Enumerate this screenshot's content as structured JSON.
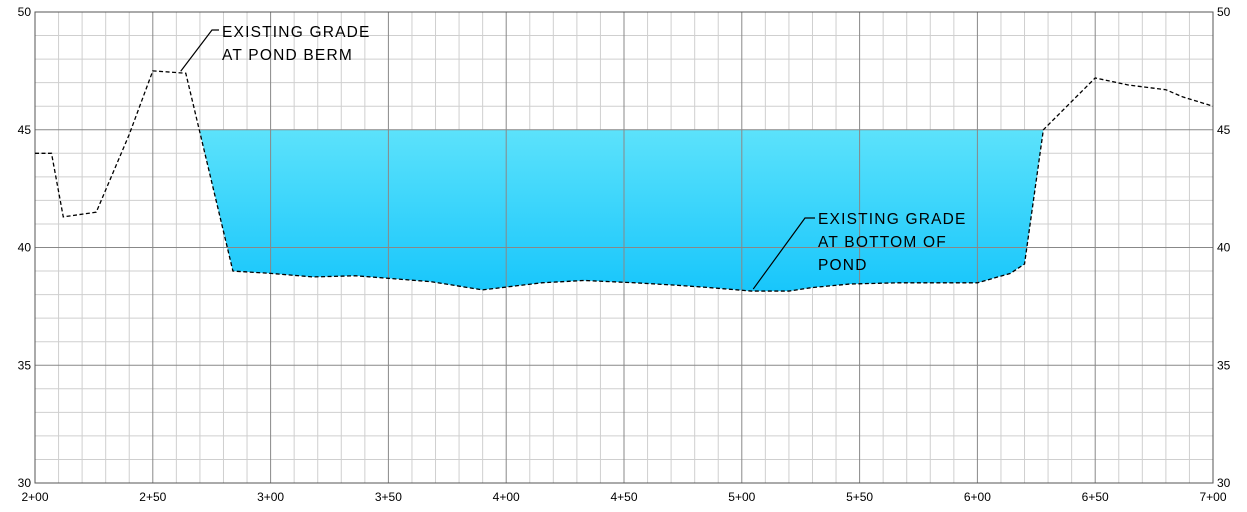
{
  "chart_data": {
    "type": "area",
    "title": "",
    "xlabel": "",
    "ylabel": "",
    "xlim": [
      200,
      700
    ],
    "ylim": [
      30,
      50
    ],
    "x_major_step": 50,
    "x_minor_step": 10,
    "y_major_step": 5,
    "y_minor_step": 1,
    "x_tick_labels": [
      "2+00",
      "2+50",
      "3+00",
      "3+50",
      "4+00",
      "4+50",
      "5+00",
      "5+50",
      "6+00",
      "6+50",
      "7+00"
    ],
    "y_tick_labels": [
      "30",
      "35",
      "40",
      "45",
      "50"
    ],
    "grid": true,
    "colors": {
      "water_top": "#5ce2fb",
      "water_bottom": "#18c6fb",
      "grid_major": "#888888",
      "grid_minor": "#cfcfcf",
      "ground_line": "#000000"
    },
    "water_surface_elevation": 45,
    "series": [
      {
        "x": [
          200,
          207,
          212,
          226,
          240,
          250,
          264,
          284,
          300,
          318,
          336,
          368,
          390,
          415,
          433,
          455,
          472,
          486,
          504,
          520,
          530,
          546,
          566,
          600,
          614,
          620,
          628,
          650,
          664,
          680,
          687,
          700
        ],
        "y": [
          44.0,
          44.0,
          41.3,
          41.5,
          44.8,
          47.5,
          47.4,
          39.0,
          38.9,
          38.75,
          38.8,
          38.55,
          38.2,
          38.5,
          38.6,
          38.5,
          38.4,
          38.3,
          38.15,
          38.15,
          38.3,
          38.45,
          38.5,
          38.5,
          38.9,
          39.3,
          45.0,
          47.2,
          46.9,
          46.7,
          46.4,
          46.0
        ]
      }
    ],
    "annotations": [
      {
        "text_lines": [
          "EXISTING GRADE",
          "AT POND BERM"
        ],
        "target": [
          261,
          47.4
        ]
      },
      {
        "text_lines": [
          "EXISTING GRADE",
          "AT BOTTOM OF",
          "POND"
        ],
        "target": [
          504,
          38.15
        ]
      }
    ]
  }
}
